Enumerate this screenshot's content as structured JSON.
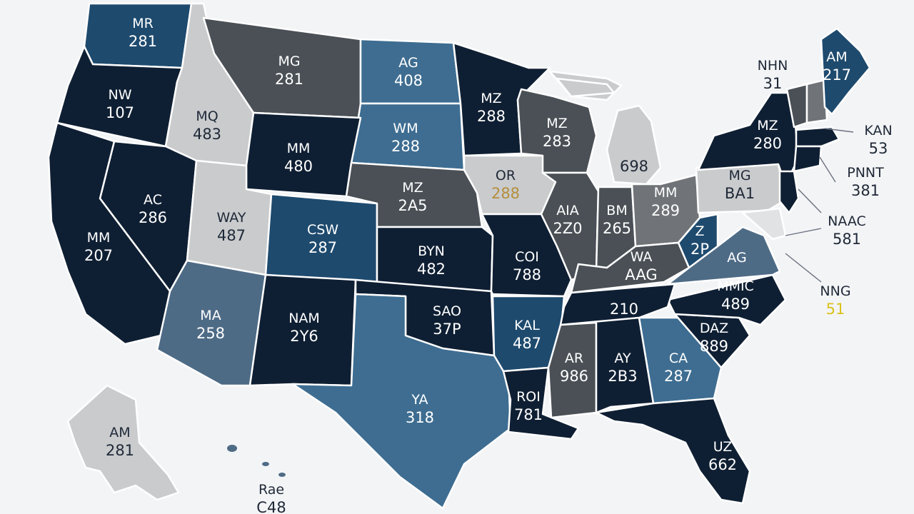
{
  "colors": {
    "navy": "#0f1f33",
    "blue_mid": "#1e4a6e",
    "blue_light": "#3e6d91",
    "steel": "#4e6b86",
    "charcoal": "#4a5056",
    "gray_mid": "#707478",
    "gray_light": "#c9cbcd",
    "gray_pale": "#e1e2e4",
    "label_dark": "#1f2937",
    "label_on_dark": "#ffffff",
    "accent_gold": "#b58f3c",
    "accent_yellow": "#d9c21a"
  },
  "states": [
    {
      "id": "wa",
      "abbr": "MR",
      "value": "281",
      "color": "blue_mid"
    },
    {
      "id": "or",
      "abbr": "NW",
      "value": "107",
      "color": "navy"
    },
    {
      "id": "id",
      "abbr": "MQ",
      "value": "483",
      "color": "gray_light"
    },
    {
      "id": "mt",
      "abbr": "MG",
      "value": "281",
      "color": "charcoal"
    },
    {
      "id": "nd",
      "abbr": "AG",
      "value": "408",
      "color": "blue_light"
    },
    {
      "id": "mn",
      "abbr": "MZ",
      "value": "288",
      "color": "navy"
    },
    {
      "id": "sd",
      "abbr": "WM",
      "value": "288",
      "color": "blue_light"
    },
    {
      "id": "wy",
      "abbr": "MM",
      "value": "480",
      "color": "navy"
    },
    {
      "id": "nv",
      "abbr": "AC",
      "value": "286",
      "color": "navy"
    },
    {
      "id": "ca",
      "abbr": "MM",
      "value": "207",
      "color": "navy"
    },
    {
      "id": "ut",
      "abbr": "WAY",
      "value": "487",
      "color": "gray_light"
    },
    {
      "id": "co",
      "abbr": "CSW",
      "value": "287",
      "color": "blue_mid"
    },
    {
      "id": "ne",
      "abbr": "MZ",
      "value": "2A5",
      "color": "charcoal"
    },
    {
      "id": "ia",
      "abbr": "OR",
      "value": "288",
      "color": "gray_light"
    },
    {
      "id": "wi",
      "abbr": "MZ",
      "value": "283",
      "color": "charcoal"
    },
    {
      "id": "mi",
      "abbr": "",
      "value": "698",
      "color": "gray_light"
    },
    {
      "id": "ks",
      "abbr": "BYN",
      "value": "482",
      "color": "navy"
    },
    {
      "id": "mo",
      "abbr": "COI",
      "value": "788",
      "color": "navy"
    },
    {
      "id": "il",
      "abbr": "AIA",
      "value": "2Z0",
      "color": "charcoal"
    },
    {
      "id": "in",
      "abbr": "BM",
      "value": "265",
      "color": "charcoal"
    },
    {
      "id": "oh",
      "abbr": "MM",
      "value": "289",
      "color": "gray_mid"
    },
    {
      "id": "pa",
      "abbr": "MG",
      "value": "BA1",
      "color": "gray_light"
    },
    {
      "id": "ny",
      "abbr": "MZ",
      "value": "280",
      "color": "navy"
    },
    {
      "id": "me",
      "abbr": "AM",
      "value": "217",
      "color": "blue_mid"
    },
    {
      "id": "az",
      "abbr": "MA",
      "value": "258",
      "color": "steel"
    },
    {
      "id": "nm",
      "abbr": "NAM",
      "value": "2Y6",
      "color": "navy"
    },
    {
      "id": "ok",
      "abbr": "SAO",
      "value": "37P",
      "color": "navy"
    },
    {
      "id": "tx",
      "abbr": "YA",
      "value": "318",
      "color": "blue_light"
    },
    {
      "id": "ar",
      "abbr": "KAL",
      "value": "487",
      "color": "blue_mid"
    },
    {
      "id": "la",
      "abbr": "ROI",
      "value": "781",
      "color": "navy"
    },
    {
      "id": "ms",
      "abbr": "AR",
      "value": "986",
      "color": "charcoal"
    },
    {
      "id": "al",
      "abbr": "AY",
      "value": "2B3",
      "color": "navy"
    },
    {
      "id": "ga",
      "abbr": "CA",
      "value": "287",
      "color": "blue_light"
    },
    {
      "id": "fl",
      "abbr": "UZ",
      "value": "662",
      "color": "navy"
    },
    {
      "id": "sc",
      "abbr": "DAZ",
      "value": "889",
      "color": "navy"
    },
    {
      "id": "nc",
      "abbr": "MMIC",
      "value": "489",
      "color": "navy"
    },
    {
      "id": "tn",
      "abbr": "",
      "value": "210",
      "color": "navy"
    },
    {
      "id": "ky",
      "abbr": "WA",
      "value": "AAG",
      "color": "charcoal"
    },
    {
      "id": "va",
      "abbr": "AG",
      "value": "",
      "color": "steel"
    },
    {
      "id": "wv",
      "abbr": "Z",
      "value": "2P",
      "color": "blue_mid"
    },
    {
      "id": "vt",
      "abbr": "",
      "value": "",
      "color": "charcoal"
    },
    {
      "id": "nh",
      "abbr": "",
      "value": "",
      "color": "gray_mid"
    },
    {
      "id": "ma",
      "abbr": "",
      "value": "",
      "color": "navy"
    },
    {
      "id": "ct",
      "abbr": "",
      "value": "",
      "color": "navy"
    },
    {
      "id": "nj",
      "abbr": "",
      "value": "",
      "color": "navy"
    },
    {
      "id": "md",
      "abbr": "",
      "value": "",
      "color": "gray_pale"
    },
    {
      "id": "ak",
      "abbr": "AM",
      "value": "281",
      "color": "gray_light"
    },
    {
      "id": "hi",
      "abbr": "",
      "value": "",
      "color": "steel"
    }
  ],
  "lake_michigan_fill": "gray_light",
  "callouts": [
    {
      "id": "nh",
      "abbr": "NHN",
      "value": "31",
      "color": "label_dark"
    },
    {
      "id": "ma",
      "abbr": "KAN",
      "value": "53",
      "color": "label_dark"
    },
    {
      "id": "ri",
      "abbr": "PNNT",
      "value": "381",
      "color": "label_dark"
    },
    {
      "id": "de",
      "abbr": "NAAC",
      "value": "581",
      "color": "label_dark"
    },
    {
      "id": "dc",
      "abbr": "NNG",
      "value": "51",
      "color": "accent_yellow"
    },
    {
      "id": "hi",
      "abbr": "Rae",
      "value": "C48",
      "color": "label_dark"
    }
  ]
}
